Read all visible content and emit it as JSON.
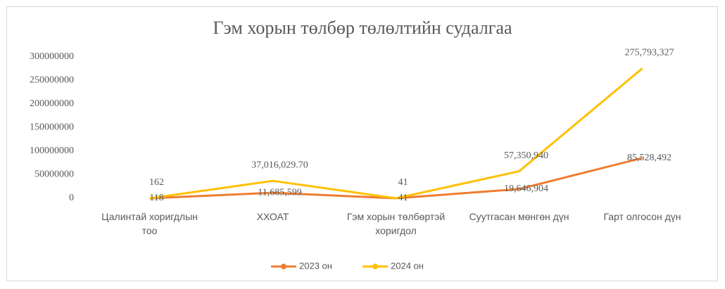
{
  "chart_data": {
    "type": "line",
    "title": "Гэм хорын төлбөр төлөлтийн судалгаа",
    "categories": [
      "Цалинтай хоригдлын тоо",
      "ХХОАТ",
      "Гэм хорын төлбөртэй хоригдол",
      "Суутгасан мөнгөн дүн",
      "Гарт олгосон  дүн"
    ],
    "series": [
      {
        "name": "2023 он",
        "color": "#ED7D31",
        "values": [
          118,
          11685599,
          41,
          19646904,
          85528492
        ],
        "value_labels": [
          "118",
          "11,685,599",
          "41",
          "19,646,904",
          "85,528,492"
        ]
      },
      {
        "name": "2024 он",
        "color": "#FFC000",
        "values": [
          162,
          37016029.7,
          41,
          57350940,
          275793327
        ],
        "value_labels": [
          "162",
          "37,016,029.70",
          "41",
          "57,350,940",
          "275,793,327"
        ]
      }
    ],
    "ylim": [
      0,
      300000000
    ],
    "yticks": [
      0,
      50000000,
      100000000,
      150000000,
      200000000,
      250000000,
      300000000
    ],
    "legend": "bottom"
  }
}
